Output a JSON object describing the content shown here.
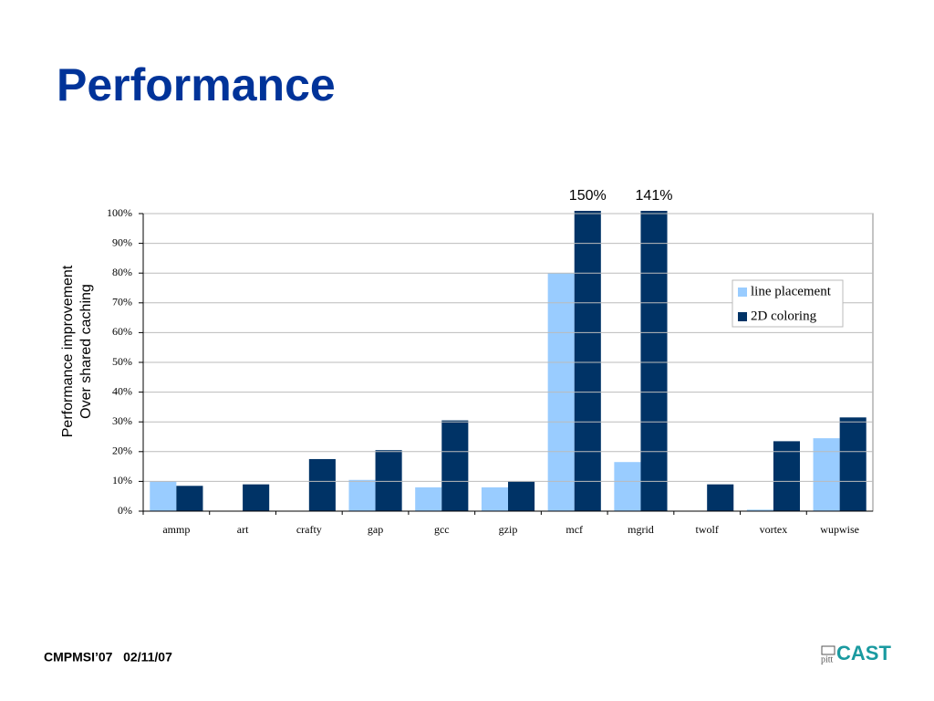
{
  "slide": {
    "title": "Performance",
    "footer": "CMPMSI’07   02/11/07",
    "logo_small": "pitt",
    "logo": "CAST"
  },
  "chart_data": {
    "type": "bar",
    "y_label": [
      "Performance improvement",
      "Over shared caching"
    ],
    "categories": [
      "ammp",
      "art",
      "crafty",
      "gap",
      "gcc",
      "gzip",
      "mcf",
      "mgrid",
      "twolf",
      "vortex",
      "wupwise"
    ],
    "series": [
      {
        "name": "line placement",
        "color": "#99ccff",
        "values": [
          10,
          0,
          0,
          10.5,
          8,
          8,
          80,
          16.5,
          0,
          0.5,
          24.5
        ]
      },
      {
        "name": "2D coloring",
        "color": "#003366",
        "values": [
          8.5,
          9,
          17.5,
          20.5,
          30.5,
          10,
          150,
          141,
          9,
          23.5,
          31.5
        ],
        "value_labels": [
          null,
          null,
          null,
          null,
          null,
          null,
          "150%",
          "141%",
          null,
          null,
          null
        ]
      }
    ],
    "ylim": [
      0,
      100
    ],
    "yticks": [
      {
        "value": 0,
        "label": "0%"
      },
      {
        "value": 10,
        "label": "10%"
      },
      {
        "value": 20,
        "label": "20%"
      },
      {
        "value": 30,
        "label": "30%"
      },
      {
        "value": 40,
        "label": "40%"
      },
      {
        "value": 50,
        "label": "50%"
      },
      {
        "value": 60,
        "label": "60%"
      },
      {
        "value": 70,
        "label": "70%"
      },
      {
        "value": 80,
        "label": "80%"
      },
      {
        "value": 90,
        "label": "90%"
      },
      {
        "value": 100,
        "label": "100%"
      }
    ],
    "grid": true,
    "legend": "right"
  }
}
